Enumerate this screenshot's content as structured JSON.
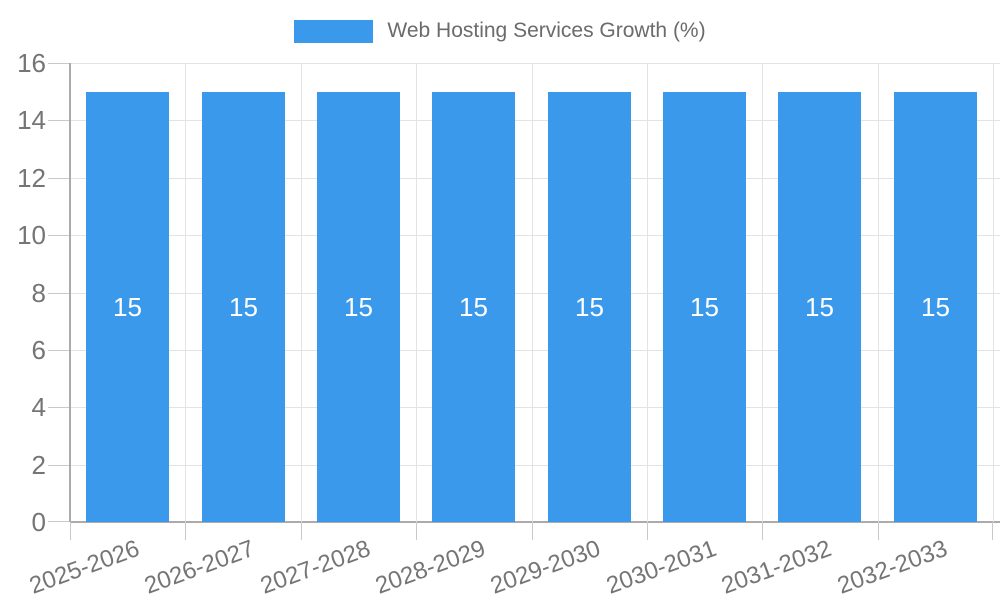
{
  "chart_data": {
    "type": "bar",
    "title": "Web Hosting Services Growth (%)",
    "categories": [
      "2025-2026",
      "2026-2027",
      "2027-2028",
      "2028-2029",
      "2029-2030",
      "2030-2031",
      "2031-2032",
      "2032-2033"
    ],
    "values": [
      15,
      15,
      15,
      15,
      15,
      15,
      15,
      15
    ],
    "data_labels": [
      "15",
      "15",
      "15",
      "15",
      "15",
      "15",
      "15",
      "15"
    ],
    "xlabel": "",
    "ylabel": "",
    "ylim": [
      0,
      16
    ],
    "yticks": [
      0,
      2,
      4,
      6,
      8,
      10,
      12,
      14,
      16
    ],
    "grid": true,
    "legend_position": "top-center",
    "colors": {
      "bar": "#3B99EC",
      "bar_label": "#FFFFFF",
      "grid_line": "#E3E3E3",
      "axis_line": "#ABABAB",
      "tick_mark": "#C9C9C9",
      "tick_label": "#757575",
      "legend_text": "#6B6B6B",
      "background": "#FFFFFF"
    }
  }
}
